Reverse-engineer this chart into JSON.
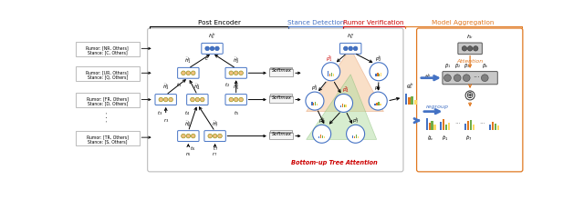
{
  "bg_color": "#ffffff",
  "section_labels": [
    "Post Encoder",
    "Stance Detection",
    "Rumor Verification",
    "Model Aggregation"
  ],
  "section_colors": [
    "#000000",
    "#4472c4",
    "#cc0000",
    "#e07820"
  ],
  "left_labels": [
    [
      "Rumor: [NR, Others]",
      "Stance: [C, Others]"
    ],
    [
      "Rumor: [UR, Others]",
      "Stance: [Q, Others]"
    ],
    [
      "Rumor: [FR, Others]",
      "Stance: [D, Others]"
    ],
    [
      "Rumor: [TR, Others]",
      "Stance: [S, Others]"
    ]
  ],
  "node_fill_blue": "#6baed6",
  "node_fill_light": "#f0dfc0",
  "node_border_blue": "#4472c4",
  "node_border_dark": "#555555",
  "softmax_fill": "#f0f0f0",
  "softmax_border": "#888888",
  "orange_region": "#f5c0a0",
  "green_region": "#c0e0b0",
  "bar_colors": [
    "#4472c4",
    "#e07820",
    "#70ad47",
    "#ffd966"
  ],
  "bar_colors2": [
    "#4472c4",
    "#e07820",
    "#ffd966",
    "#70ad47"
  ],
  "attention_orange": "#e07820",
  "rumor_red": "#cc0000",
  "blue": "#4472c4"
}
